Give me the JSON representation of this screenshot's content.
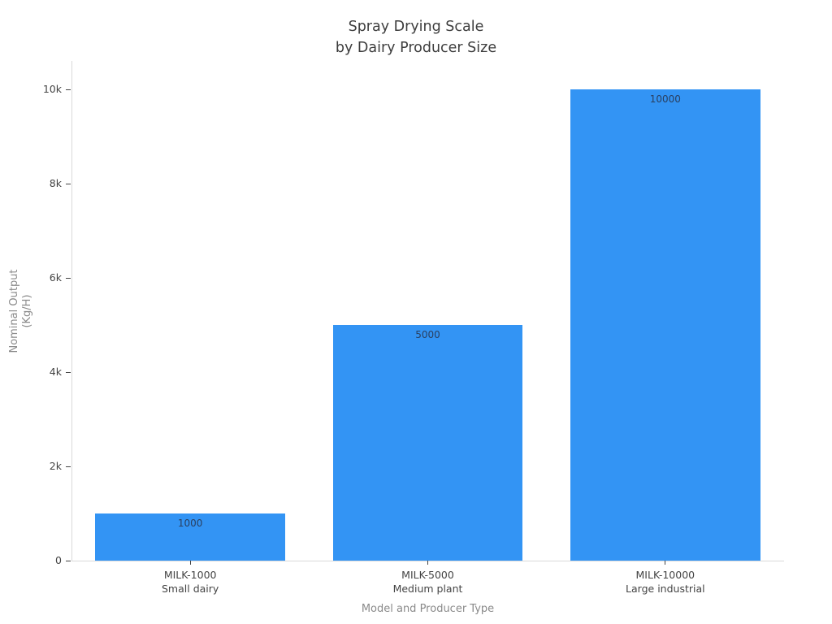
{
  "chart": {
    "title_line1": "Spray Drying Scale",
    "title_line2": "by Dairy Producer Size",
    "ylabel_line1": "Nominal Output",
    "ylabel_line2": "(Kg/H)",
    "xlabel": "Model and Producer Type",
    "bar_color": "#3394f4"
  },
  "chart_data": {
    "type": "bar",
    "title": "Spray Drying Scale by Dairy Producer Size",
    "xlabel": "Model and Producer Type",
    "ylabel": "Nominal Output (Kg/H)",
    "categories": [
      [
        "MILK-1000",
        "Small dairy"
      ],
      [
        "MILK-5000",
        "Medium plant"
      ],
      [
        "MILK-10000",
        "Large industrial"
      ]
    ],
    "values": [
      1000,
      5000,
      10000
    ],
    "bar_labels": [
      "1000",
      "5000",
      "10000"
    ],
    "ylim": [
      0,
      10000
    ],
    "yticks": [
      {
        "v": 0,
        "label": "0"
      },
      {
        "v": 2000,
        "label": "2k"
      },
      {
        "v": 4000,
        "label": "4k"
      },
      {
        "v": 6000,
        "label": "6k"
      },
      {
        "v": 8000,
        "label": "8k"
      },
      {
        "v": 10000,
        "label": "10k"
      }
    ],
    "grid": false,
    "legend": "none",
    "bar_color": "#3394f4"
  }
}
